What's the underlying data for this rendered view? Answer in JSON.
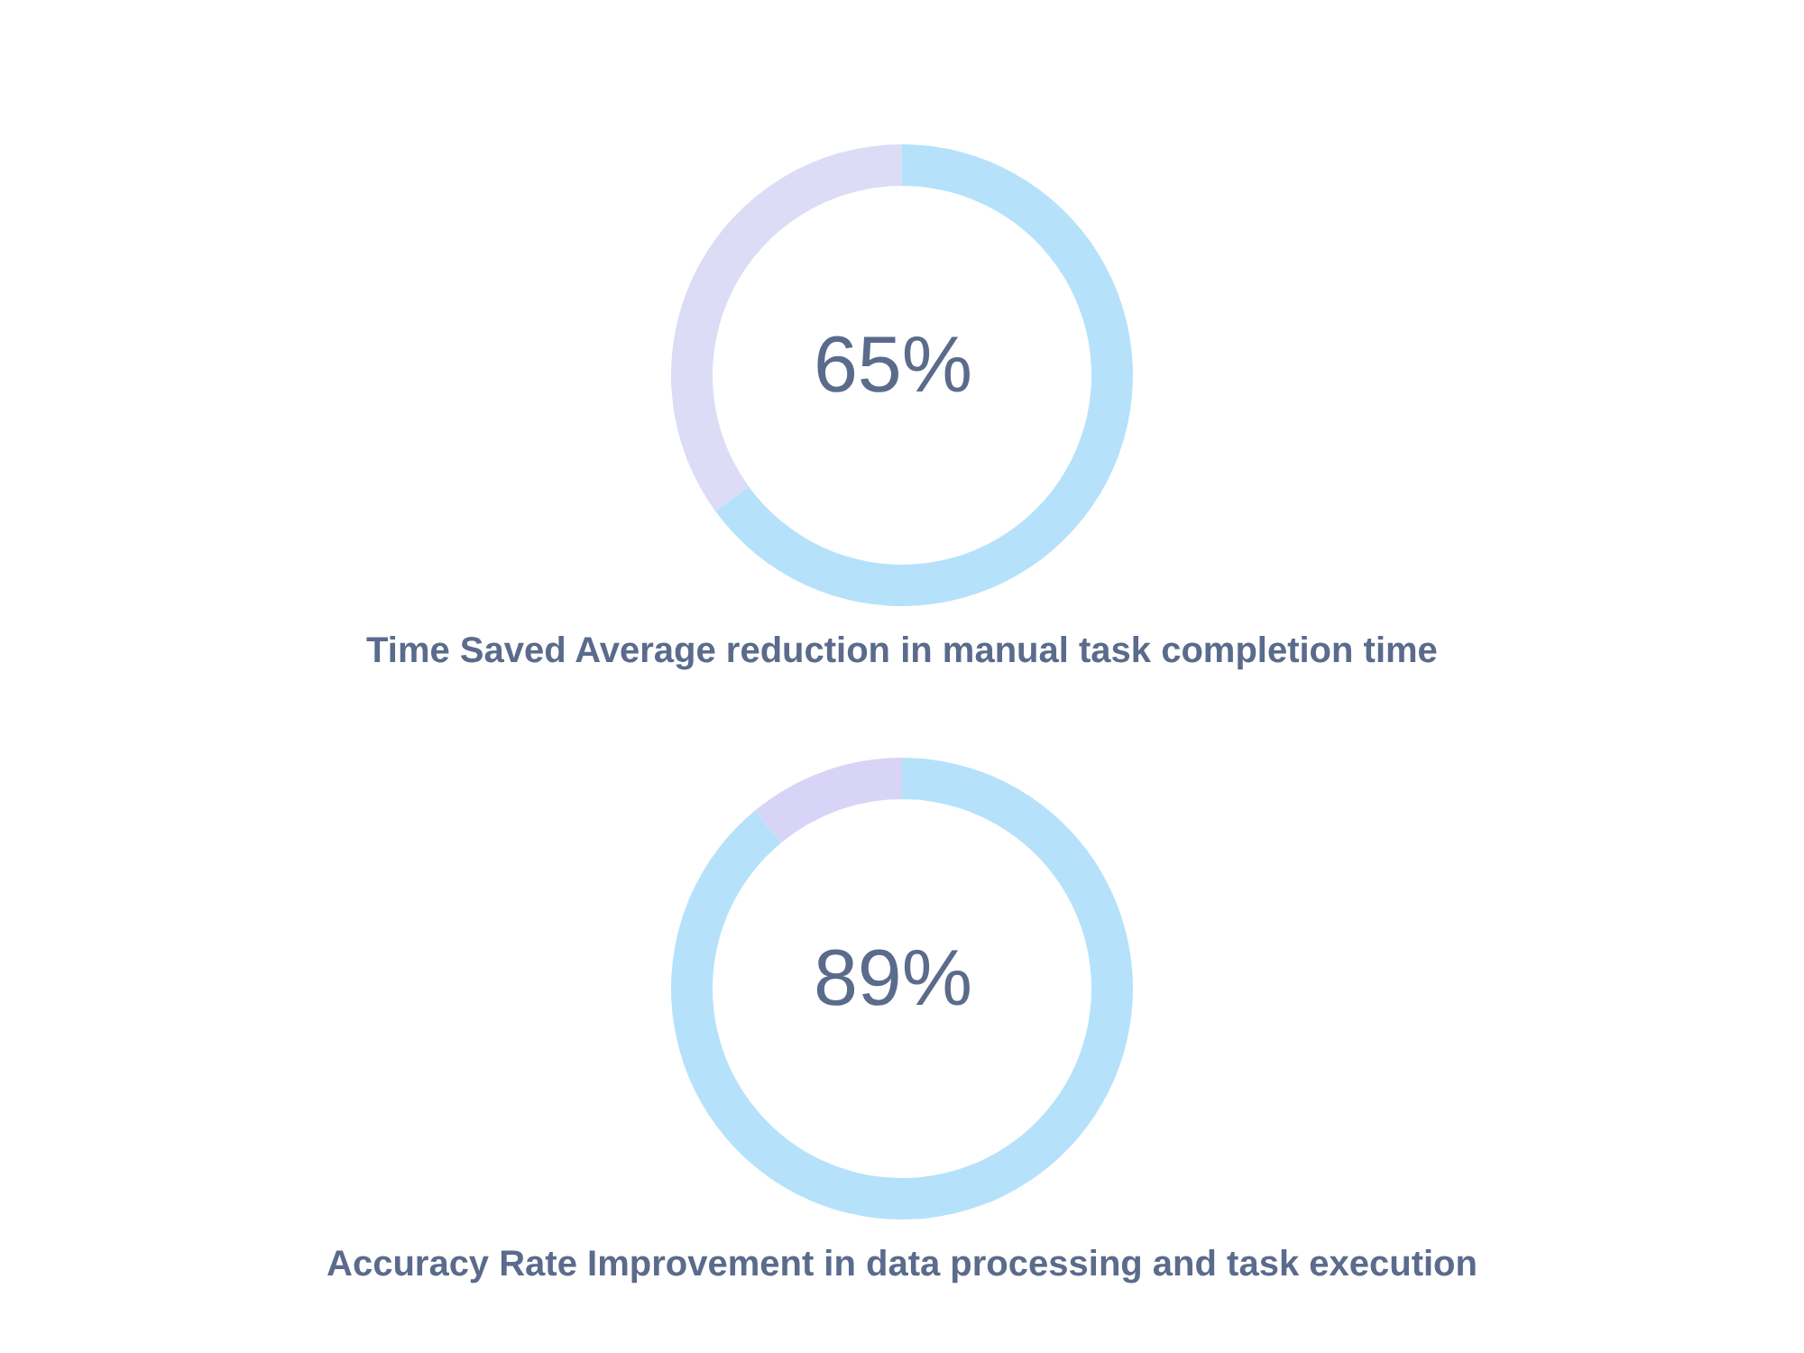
{
  "chart_data": [
    {
      "type": "donut",
      "title": "Time Saved Average reduction in manual task completion time",
      "categories": [
        null,
        null
      ],
      "values": [
        65,
        35
      ],
      "colors": [
        "#b5e2fa",
        "#dcdcf7"
      ],
      "annotations": [
        "65%"
      ]
    },
    {
      "type": "donut",
      "title": "Accuracy Rate Improvement in data processing and task execution",
      "categories": [
        null,
        null
      ],
      "values": [
        89,
        11
      ],
      "colors": [
        "#b5e2fa",
        "#d8d4f8"
      ],
      "annotations": [
        "89%"
      ]
    }
  ]
}
